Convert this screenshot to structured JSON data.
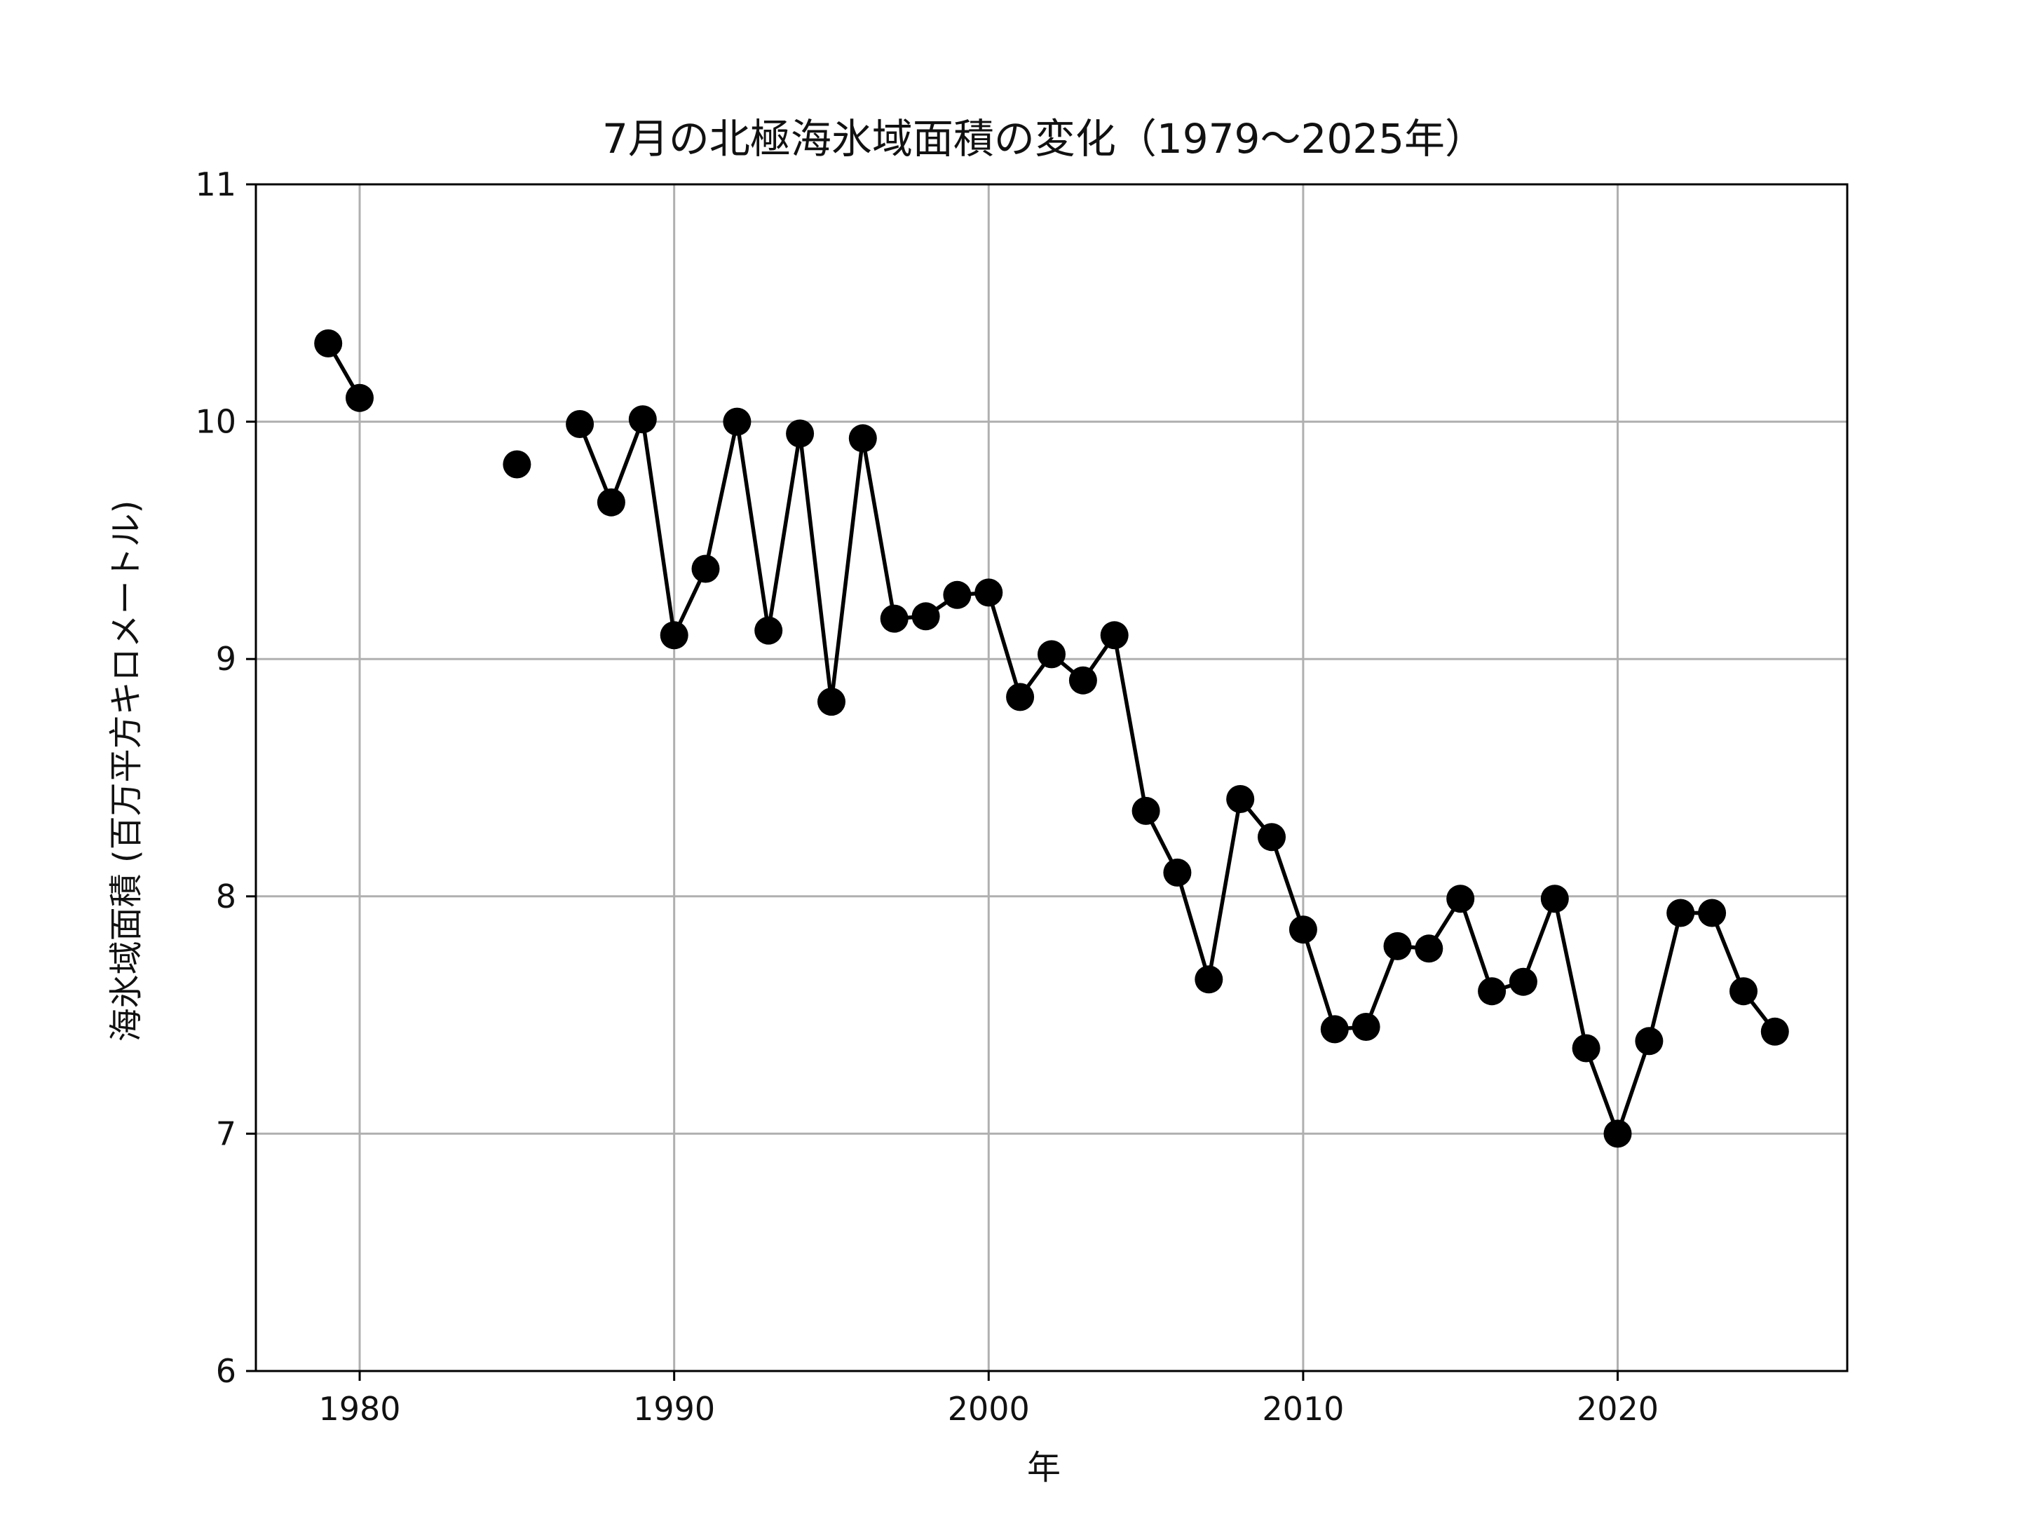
{
  "chart_data": {
    "type": "line",
    "title": "7月の北極海氷域面積の変化（1979～2025年）",
    "xlabel": "年",
    "ylabel": "海氷域面積 (百万平方キロメートル)",
    "xlim": [
      1976.7,
      2027.3
    ],
    "ylim": [
      6,
      11
    ],
    "xticks": [
      1980,
      1990,
      2000,
      2010,
      2020
    ],
    "yticks": [
      6,
      7,
      8,
      9,
      10,
      11
    ],
    "grid": true,
    "marker": "circle",
    "colors": {
      "line": "#000000",
      "marker": "#000000",
      "grid": "#b0b0b0",
      "axes": "#000000"
    },
    "series": [
      {
        "segments": [
          {
            "x": [
              1979,
              1980
            ],
            "y": [
              10.33,
              10.1
            ]
          },
          {
            "x": [
              1985
            ],
            "y": [
              9.82
            ]
          },
          {
            "x": [
              1987,
              1988,
              1989,
              1990,
              1991,
              1992,
              1993,
              1994,
              1995,
              1996,
              1997,
              1998,
              1999,
              2000,
              2001,
              2002,
              2003,
              2004,
              2005,
              2006,
              2007,
              2008,
              2009,
              2010,
              2011,
              2012,
              2013,
              2014,
              2015,
              2016,
              2017,
              2018,
              2019,
              2020,
              2021,
              2022,
              2023,
              2024,
              2025
            ],
            "y": [
              9.99,
              9.66,
              10.01,
              9.1,
              9.38,
              10.0,
              9.12,
              9.95,
              8.82,
              9.93,
              9.17,
              9.18,
              9.27,
              9.28,
              8.84,
              9.02,
              8.91,
              9.1,
              8.36,
              8.1,
              7.65,
              8.41,
              8.25,
              7.86,
              7.44,
              7.45,
              7.79,
              7.78,
              7.99,
              7.6,
              7.64,
              7.99,
              7.36,
              7.0,
              7.39,
              7.93,
              7.93,
              7.6,
              7.43
            ]
          }
        ]
      }
    ]
  }
}
